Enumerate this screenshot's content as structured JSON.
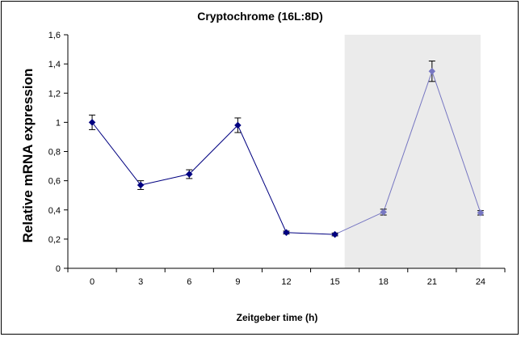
{
  "chart_data": {
    "type": "line",
    "title": "Cryptochrome (16L:8D)",
    "xlabel": "Zeitgeber time (h)",
    "ylabel": "Relative mRNA expression",
    "x": [
      0,
      3,
      6,
      9,
      12,
      15,
      18,
      21,
      24
    ],
    "x_tick_labels": [
      "0",
      "3",
      "6",
      "9",
      "12",
      "15",
      "18",
      "21",
      "24"
    ],
    "y_tick_labels": [
      "0",
      "0,2",
      "0,4",
      "0,6",
      "0,8",
      "1",
      "1,2",
      "1,4",
      "1,6"
    ],
    "ylim": [
      0,
      1.6
    ],
    "grid": false,
    "legend": "none",
    "series": [
      {
        "values": [
          1.0,
          0.57,
          0.645,
          0.98,
          0.245,
          0.232,
          0.385,
          1.35,
          0.38
        ],
        "errors": [
          0.05,
          0.03,
          0.03,
          0.05,
          0.01,
          0.01,
          0.02,
          0.07,
          0.015
        ]
      }
    ],
    "dark_phase": {
      "from": 15.6,
      "to": 24
    },
    "colors": {
      "light_series": "#000080",
      "dark_series": "#7777c2",
      "dark_shade": "#ebebeb"
    }
  }
}
